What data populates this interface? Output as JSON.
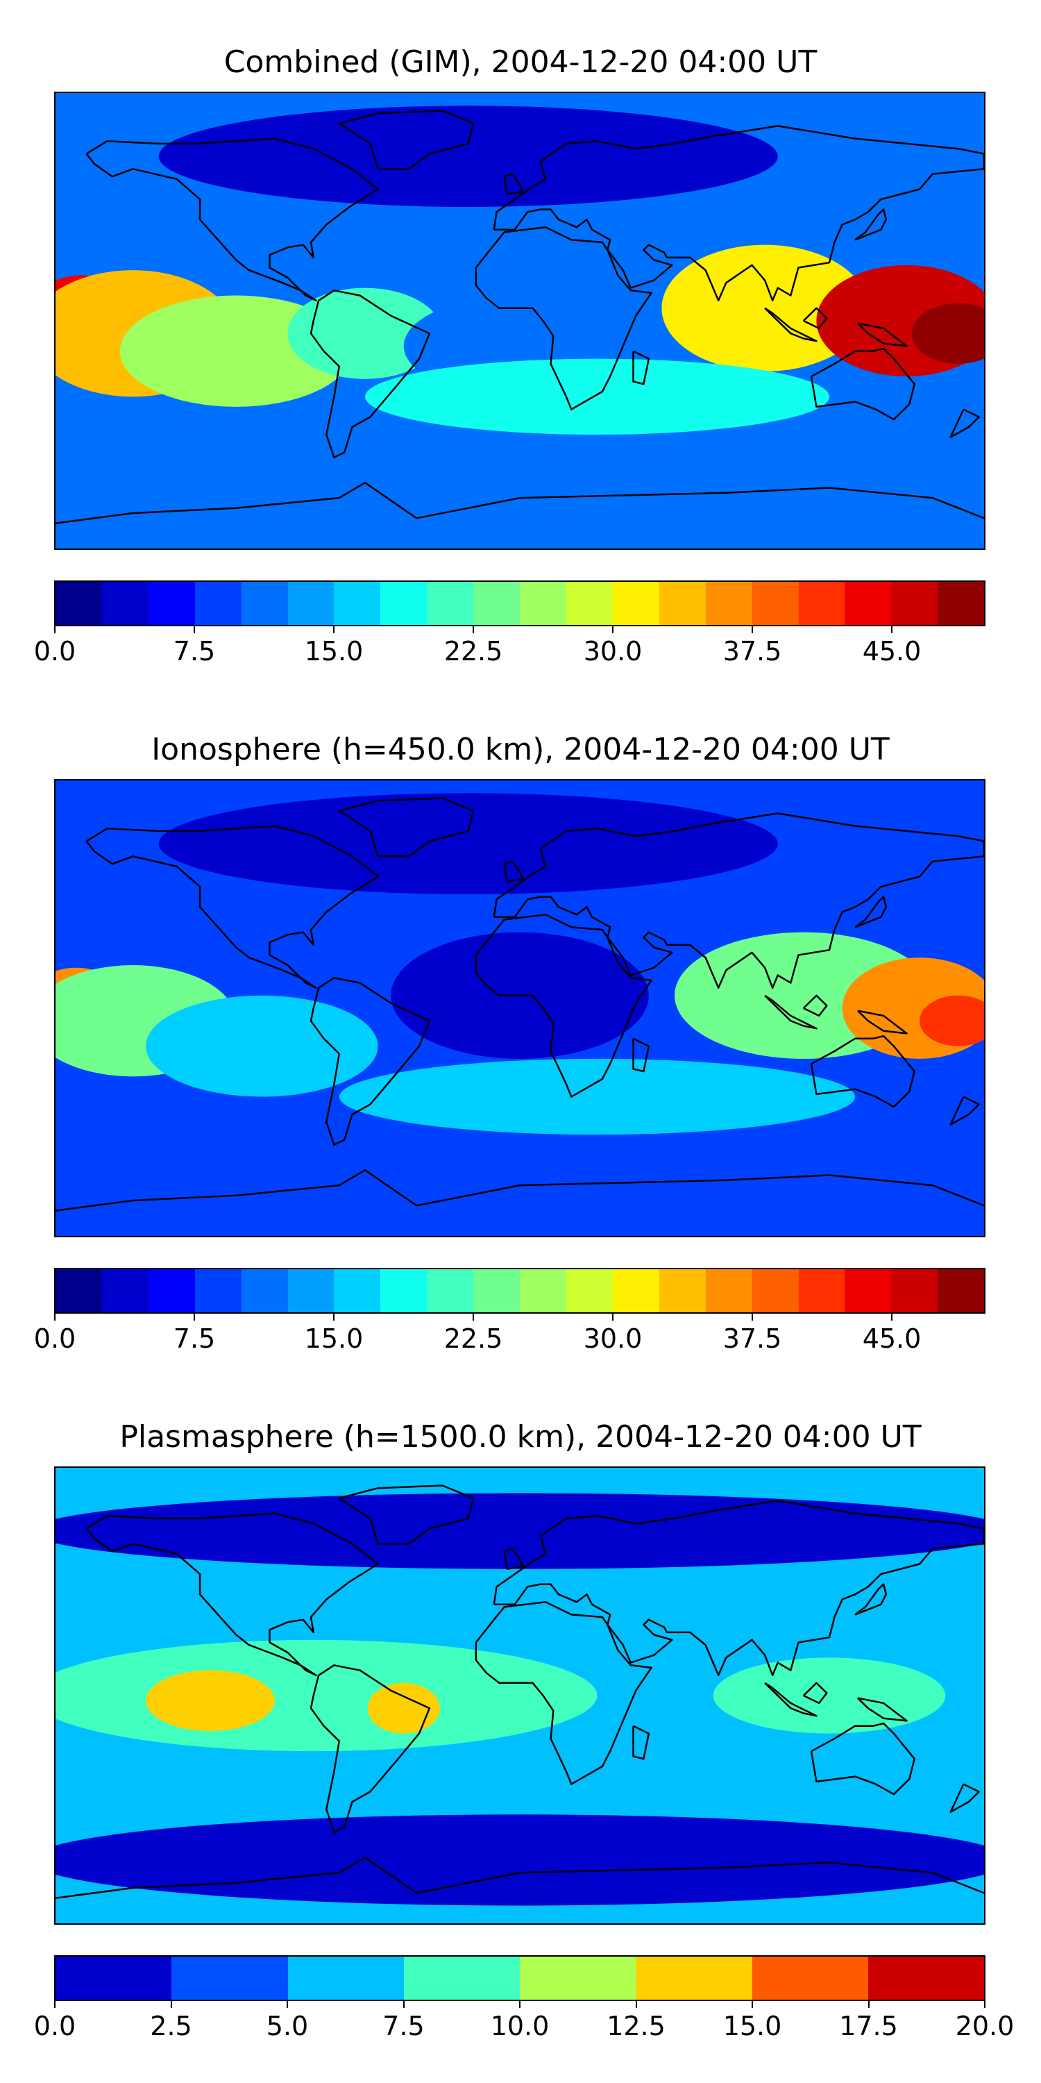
{
  "colors": {
    "jet": [
      "#00008f",
      "#0000cc",
      "#0000ff",
      "#0040ff",
      "#0070ff",
      "#009fff",
      "#00cfff",
      "#10ffef",
      "#40ffbf",
      "#70ff8f",
      "#9fff60",
      "#cfff30",
      "#ffef00",
      "#ffbf00",
      "#ff8f00",
      "#ff6000",
      "#ff3000",
      "#ef0000",
      "#cc0000",
      "#8f0000"
    ],
    "plasma": [
      "#0000cc",
      "#0050ff",
      "#00c0ff",
      "#40ffbf",
      "#b0ff50",
      "#ffd000",
      "#ff5a00",
      "#cc0000"
    ],
    "coastline": "#000000"
  },
  "panels": [
    {
      "id": "combined",
      "title": "Combined (GIM), 2004-12-20 04:00 UT",
      "colorbar": {
        "min": 0.0,
        "max": 50.0,
        "levels": 20,
        "ticks": [
          "0.0",
          "7.5",
          "15.0",
          "22.5",
          "30.0",
          "37.5",
          "45.0"
        ],
        "tick_values": [
          0.0,
          7.5,
          15.0,
          22.5,
          30.0,
          37.5,
          45.0
        ]
      },
      "field": {
        "background": 12,
        "blobs": [
          {
            "lon": -170,
            "lat": 0,
            "rx": 22,
            "ry": 18,
            "value": 43
          },
          {
            "lon": -150,
            "lat": -5,
            "rx": 40,
            "ry": 25,
            "value": 33
          },
          {
            "lon": -110,
            "lat": -12,
            "rx": 45,
            "ry": 22,
            "value": 26
          },
          {
            "lon": -60,
            "lat": -5,
            "rx": 30,
            "ry": 18,
            "value": 20
          },
          {
            "lon": 0,
            "lat": -10,
            "rx": 45,
            "ry": 20,
            "value": 10
          },
          {
            "lon": 95,
            "lat": 5,
            "rx": 40,
            "ry": 25,
            "value": 30
          },
          {
            "lon": 150,
            "lat": 0,
            "rx": 35,
            "ry": 22,
            "value": 46
          },
          {
            "lon": 170,
            "lat": -5,
            "rx": 18,
            "ry": 12,
            "value": 49
          },
          {
            "lon": 30,
            "lat": -30,
            "rx": 90,
            "ry": 15,
            "value": 18
          },
          {
            "lon": -20,
            "lat": 65,
            "rx": 120,
            "ry": 20,
            "value": 4
          }
        ]
      }
    },
    {
      "id": "ionosphere",
      "title": "Ionosphere  (h=450.0 km), 2004-12-20 04:00 UT",
      "colorbar": {
        "min": 0.0,
        "max": 50.0,
        "levels": 20,
        "ticks": [
          "0.0",
          "7.5",
          "15.0",
          "22.5",
          "30.0",
          "37.5",
          "45.0"
        ],
        "tick_values": [
          0.0,
          7.5,
          15.0,
          22.5,
          30.0,
          37.5,
          45.0
        ]
      },
      "field": {
        "background": 9,
        "blobs": [
          {
            "lon": -172,
            "lat": 0,
            "rx": 20,
            "ry": 16,
            "value": 36
          },
          {
            "lon": -150,
            "lat": -5,
            "rx": 40,
            "ry": 22,
            "value": 24
          },
          {
            "lon": -100,
            "lat": -15,
            "rx": 45,
            "ry": 20,
            "value": 15
          },
          {
            "lon": 0,
            "lat": 5,
            "rx": 50,
            "ry": 25,
            "value": 3
          },
          {
            "lon": 110,
            "lat": 5,
            "rx": 50,
            "ry": 25,
            "value": 24
          },
          {
            "lon": 155,
            "lat": 0,
            "rx": 30,
            "ry": 20,
            "value": 35
          },
          {
            "lon": 170,
            "lat": -5,
            "rx": 15,
            "ry": 10,
            "value": 40
          },
          {
            "lon": 30,
            "lat": -35,
            "rx": 100,
            "ry": 15,
            "value": 16
          },
          {
            "lon": -20,
            "lat": 65,
            "rx": 120,
            "ry": 20,
            "value": 4
          }
        ]
      }
    },
    {
      "id": "plasmasphere",
      "title": "Plasmasphere (h=1500.0 km), 2004-12-20 04:00 UT",
      "colorbar": {
        "min": 0.0,
        "max": 20.0,
        "levels": 8,
        "ticks": [
          "0.0",
          "2.5",
          "5.0",
          "7.5",
          "10.0",
          "12.5",
          "15.0",
          "17.5",
          "20.0"
        ],
        "tick_values": [
          0.0,
          2.5,
          5.0,
          7.5,
          10.0,
          12.5,
          15.0,
          17.5,
          20.0
        ]
      },
      "field": {
        "background": 6,
        "blobs": [
          {
            "lon": 0,
            "lat": 65,
            "rx": 190,
            "ry": 15,
            "value": 1
          },
          {
            "lon": 0,
            "lat": -65,
            "rx": 190,
            "ry": 18,
            "value": 1
          },
          {
            "lon": -80,
            "lat": 0,
            "rx": 110,
            "ry": 22,
            "value": 9
          },
          {
            "lon": -120,
            "lat": -2,
            "rx": 25,
            "ry": 12,
            "value": 14
          },
          {
            "lon": -45,
            "lat": -5,
            "rx": 14,
            "ry": 10,
            "value": 13.5
          },
          {
            "lon": 120,
            "lat": 0,
            "rx": 45,
            "ry": 15,
            "value": 9
          }
        ]
      }
    }
  ]
}
